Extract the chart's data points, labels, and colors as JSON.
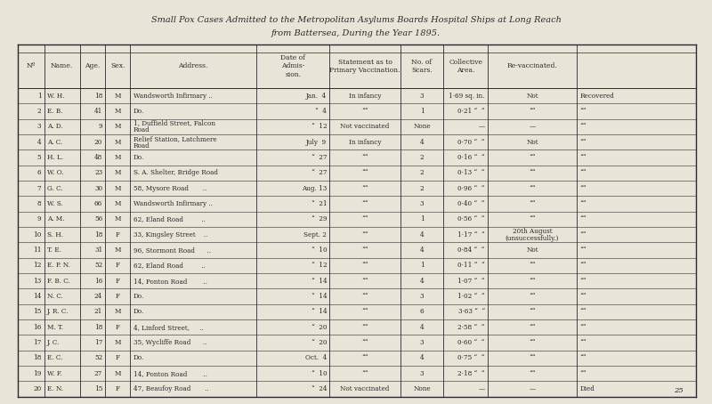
{
  "title_line1": "Small Pox Cases Admitted to the Metropolitan Asylums Boards Hospital Ships at Long Reach",
  "title_line2": "from Battersea, During the Year 1895.",
  "bg_color": "#e8e4d8",
  "text_color": "#2a2a2a",
  "headers": [
    "Nº",
    "Name.",
    "Age.",
    "Sex.",
    "Address.",
    "Date of\nAdmis-\nsion.",
    "Statement as to\nPrimary Vaccination.",
    "No. of\nScars.",
    "Collective\nArea.",
    "Re-vaccinated.",
    ""
  ],
  "col_boundaries": [
    0.025,
    0.062,
    0.112,
    0.148,
    0.183,
    0.36,
    0.463,
    0.562,
    0.623,
    0.685,
    0.81,
    0.978
  ],
  "rows": [
    [
      "1",
      "W. H.",
      "18",
      "M",
      "Wandsworth Infirmary ..",
      "Jan.  4",
      "In infancy",
      "3",
      "1·69 sq. in.",
      "Not",
      "Recovered"
    ],
    [
      "2",
      "E. B.",
      "41",
      "M",
      "Do.",
      "“  4",
      "““",
      "1",
      "0·21 “  “",
      "““",
      "““"
    ],
    [
      "3",
      "A. D.",
      "9",
      "M",
      "1, Duffield Street, Falcon\nRoad",
      "“  12",
      "Not vaccinated",
      "None",
      "—",
      "—",
      "““"
    ],
    [
      "4",
      "A. C.",
      "20",
      "M",
      "Relief Station, Latchmere\nRoad",
      "July  9",
      "In infancy",
      "4",
      "0·70 “  “",
      "Not",
      "““"
    ],
    [
      "5",
      "H. L.",
      "48",
      "M",
      "Do.",
      "“  27",
      "““",
      "2",
      "0·16 “  “",
      "““",
      "““"
    ],
    [
      "6",
      "W. O.",
      "23",
      "M",
      "S. A. Shelter, Bridge Road",
      "“  27",
      "““",
      "2",
      "0·13 “  “",
      "““",
      "““"
    ],
    [
      "7",
      "G. C.",
      "30",
      "M",
      "58, Mysore Road       ..",
      "Aug. 13",
      "““",
      "2",
      "0·96 “  “",
      "““",
      "““"
    ],
    [
      "8",
      "W. S.",
      "66",
      "M",
      "Wandsworth Infirmary ..",
      "“  21",
      "““",
      "3",
      "0·40 “  “",
      "““",
      "““"
    ],
    [
      "9",
      "A. M.",
      "56",
      "M",
      "62, Eland Road         ..",
      "“  29",
      "““",
      "1",
      "0·56 “  “",
      "““",
      "““"
    ],
    [
      "10",
      "S. H.",
      "18",
      "F",
      "33, Kingsley Street    ..",
      "Sept. 2",
      "““",
      "4",
      "1·17 “  “",
      "20th August\n(unsuccessfully.)",
      "““"
    ],
    [
      "11",
      "T. E.",
      "31",
      "M",
      "96, Stormont Road      ..",
      "“  10",
      "““",
      "4",
      "0·84 “  “",
      "Not",
      "““"
    ],
    [
      "12",
      "E. P. N.",
      "52",
      "F",
      "62, Eland Road         ..",
      "“  12",
      "““",
      "1",
      "0·11 “  “",
      "““",
      "““"
    ],
    [
      "13",
      "F. B. C.",
      "16",
      "F",
      "14, Ponton Road        ..",
      "“  14",
      "““",
      "4",
      "1·07 “  “",
      "““",
      "““"
    ],
    [
      "14",
      "N. C.",
      "24",
      "F",
      "Do.",
      "“  14",
      "““",
      "3",
      "1·02 “  “",
      "““",
      "““"
    ],
    [
      "15",
      "J. R. C.",
      "21",
      "M",
      "Do.",
      "“  14",
      "““",
      "6",
      "3·63 “  “",
      "““",
      "““"
    ],
    [
      "16",
      "M. T.",
      "18",
      "F",
      "4, Linford Street,     ..",
      "“  20",
      "““",
      "4",
      "2·58 “  “",
      "““",
      "““"
    ],
    [
      "17",
      "J. C.",
      "17",
      "M",
      "35, Wycliffe Road      ..",
      "“  20",
      "““",
      "3",
      "0·60 “  “",
      "““",
      "““"
    ],
    [
      "18",
      "E. C.",
      "52",
      "F",
      "Do.",
      "Oct.  4",
      "““",
      "4",
      "0·75 “  “",
      "““",
      "““"
    ],
    [
      "19",
      "W. F.",
      "27",
      "M",
      "14, Ponton Road        ..",
      "“  10",
      "““",
      "3",
      "2·18 “  “",
      "““",
      "““"
    ],
    [
      "20",
      "E. N.",
      "15",
      "F",
      "47, Beaufoy Road       ..",
      "“  24",
      "Not vaccinated",
      "None",
      "—",
      "—",
      "Died"
    ]
  ],
  "col_align": [
    "right",
    "left",
    "right",
    "center",
    "left",
    "right",
    "center",
    "center",
    "right",
    "center",
    "left"
  ],
  "header_align": [
    "center",
    "center",
    "center",
    "center",
    "center",
    "center",
    "center",
    "center",
    "center",
    "center",
    "center"
  ]
}
